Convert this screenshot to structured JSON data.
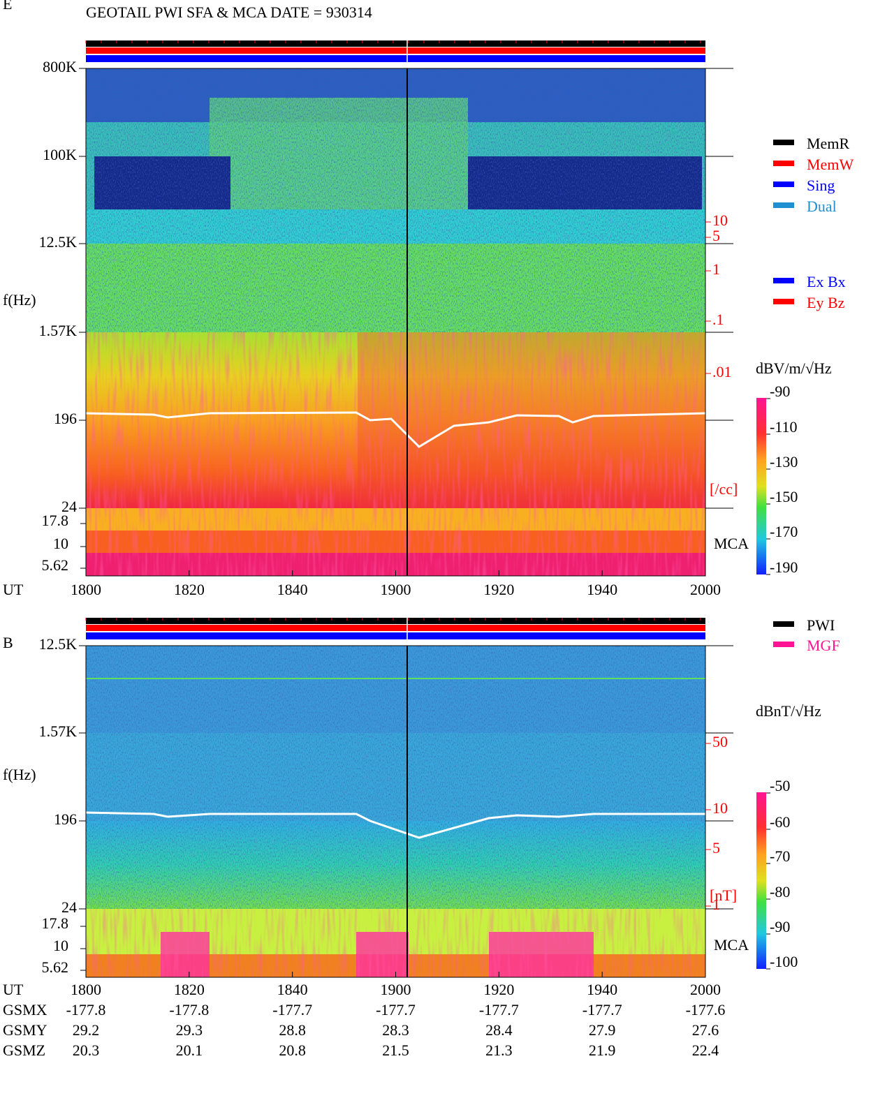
{
  "title": "GEOTAIL  PWI SFA & MCA  DATE = 930314",
  "legend_mode": [
    {
      "label": "MemR",
      "color": "#000000"
    },
    {
      "label": "MemW",
      "color": "#ff0000"
    },
    {
      "label": "Sing",
      "color": "#0000ff"
    },
    {
      "label": "Dual",
      "color": "#1e8fd0"
    }
  ],
  "legend_antenna": [
    {
      "label": "Ex Bx",
      "color": "#0000ff"
    },
    {
      "label": "Ey Bz",
      "color": "#ff0000"
    }
  ],
  "legend_instrument": [
    {
      "label": "PWI",
      "color": "#000000"
    },
    {
      "label": "MGF",
      "color": "#ff1493"
    }
  ],
  "panels": [
    {
      "component": "E",
      "freq_label": "f(Hz)",
      "freq_ticks": [
        "800K",
        "100K",
        "12.5K",
        "1.57K",
        "196",
        "24"
      ],
      "mca_ticks": [
        "17.8",
        "10",
        "5.62"
      ],
      "mca_label": "MCA",
      "scale_ticks": [
        "10",
        "5",
        "1",
        ".1",
        ".01"
      ],
      "scale_unit": "[/cc]",
      "colorbar_unit": "dBV/m/√Hz",
      "colorbar_ticks": [
        "-90",
        "-110",
        "-130",
        "-150",
        "-170",
        "-190"
      ]
    },
    {
      "component": "B",
      "freq_label": "f(Hz)",
      "freq_ticks": [
        "12.5K",
        "1.57K",
        "196",
        "24"
      ],
      "mca_ticks": [
        "17.8",
        "10",
        "5.62"
      ],
      "mca_label": "MCA",
      "scale_ticks": [
        "50",
        "10",
        "5",
        "1"
      ],
      "scale_unit": "[nT]",
      "colorbar_unit": "dBnT/√Hz",
      "colorbar_ticks": [
        "-50",
        "-60",
        "-70",
        "-80",
        "-90",
        "-100"
      ]
    }
  ],
  "time_axis": {
    "label": "UT",
    "ticks": [
      "1800",
      "1820",
      "1840",
      "1900",
      "1920",
      "1940",
      "2000"
    ]
  },
  "orbit": [
    {
      "label": "GSMX",
      "values": [
        "-177.8",
        "-177.8",
        "-177.7",
        "-177.7",
        "-177.7",
        "-177.7",
        "-177.6"
      ]
    },
    {
      "label": "GSMY",
      "values": [
        "29.2",
        "29.3",
        "28.8",
        "28.3",
        "28.4",
        "27.9",
        "27.6"
      ]
    },
    {
      "label": "GSMZ",
      "values": [
        "20.3",
        "20.1",
        "20.8",
        "21.5",
        "21.3",
        "21.9",
        "22.4"
      ]
    }
  ]
}
